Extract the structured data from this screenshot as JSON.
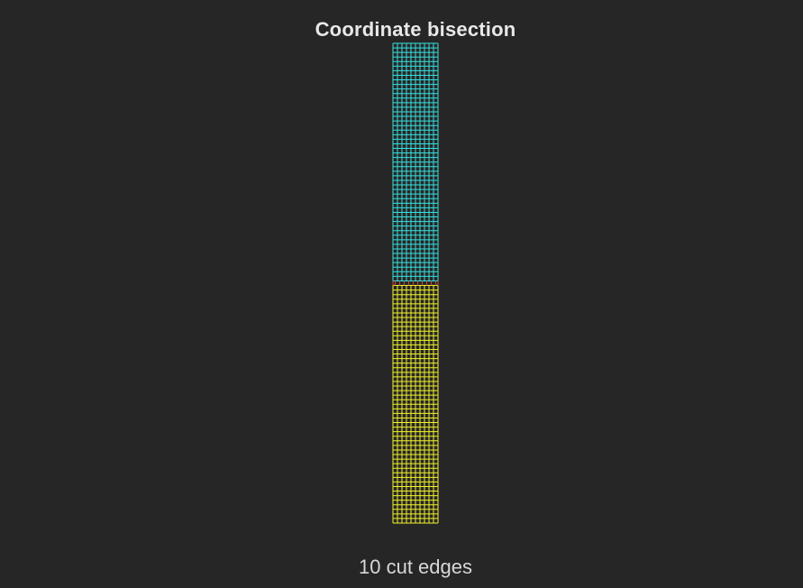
{
  "title": "Coordinate bisection",
  "caption": "10 cut edges",
  "mesh": {
    "columns": 10,
    "rows": 104,
    "partitions": [
      {
        "name": "top",
        "rows": 52,
        "color": "#36e0e0"
      },
      {
        "name": "bottom",
        "rows": 52,
        "color": "#f2f22a"
      }
    ],
    "cut_edge_color": "#d0453a",
    "cut_edges": 10
  },
  "colors": {
    "background": "#262626",
    "text": "#e8e8e8"
  }
}
